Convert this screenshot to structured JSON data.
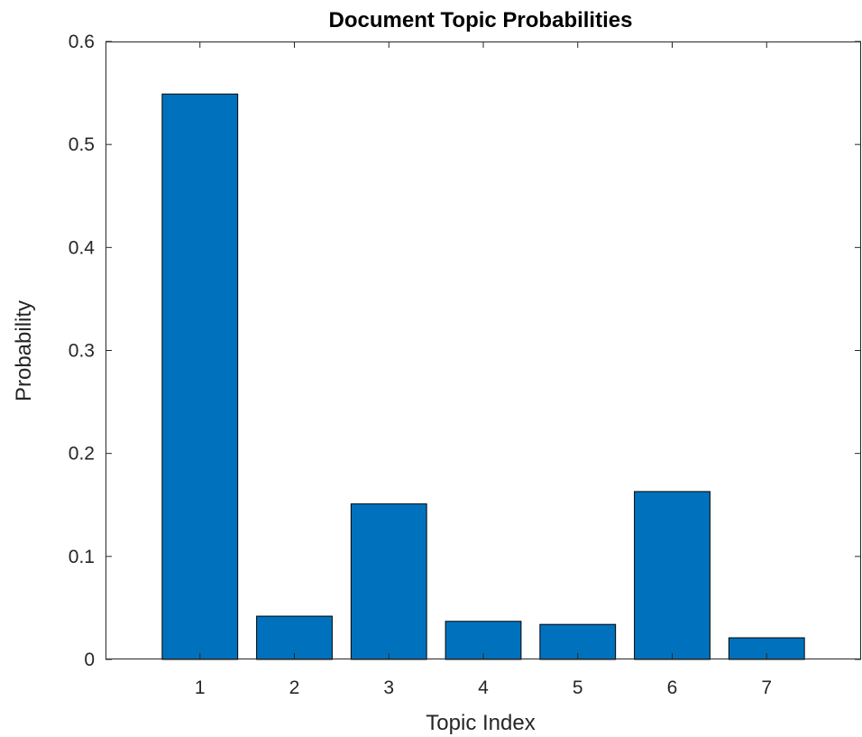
{
  "chart_data": {
    "type": "bar",
    "title": "Document Topic Probabilities",
    "xlabel": "Topic Index",
    "ylabel": "Probability",
    "categories": [
      "1",
      "2",
      "3",
      "4",
      "5",
      "6",
      "7"
    ],
    "values": [
      0.549,
      0.042,
      0.151,
      0.037,
      0.034,
      0.163,
      0.021
    ],
    "ylim": [
      0,
      0.6
    ],
    "xlim": [
      0,
      8
    ],
    "yticks": [
      0,
      0.1,
      0.2,
      0.3,
      0.4,
      0.5,
      0.6
    ],
    "ytick_labels": [
      "0",
      "0.1",
      "0.2",
      "0.3",
      "0.4",
      "0.5",
      "0.6"
    ],
    "grid": false,
    "bar_color": "#0072BD",
    "edge_color": "#000000"
  }
}
